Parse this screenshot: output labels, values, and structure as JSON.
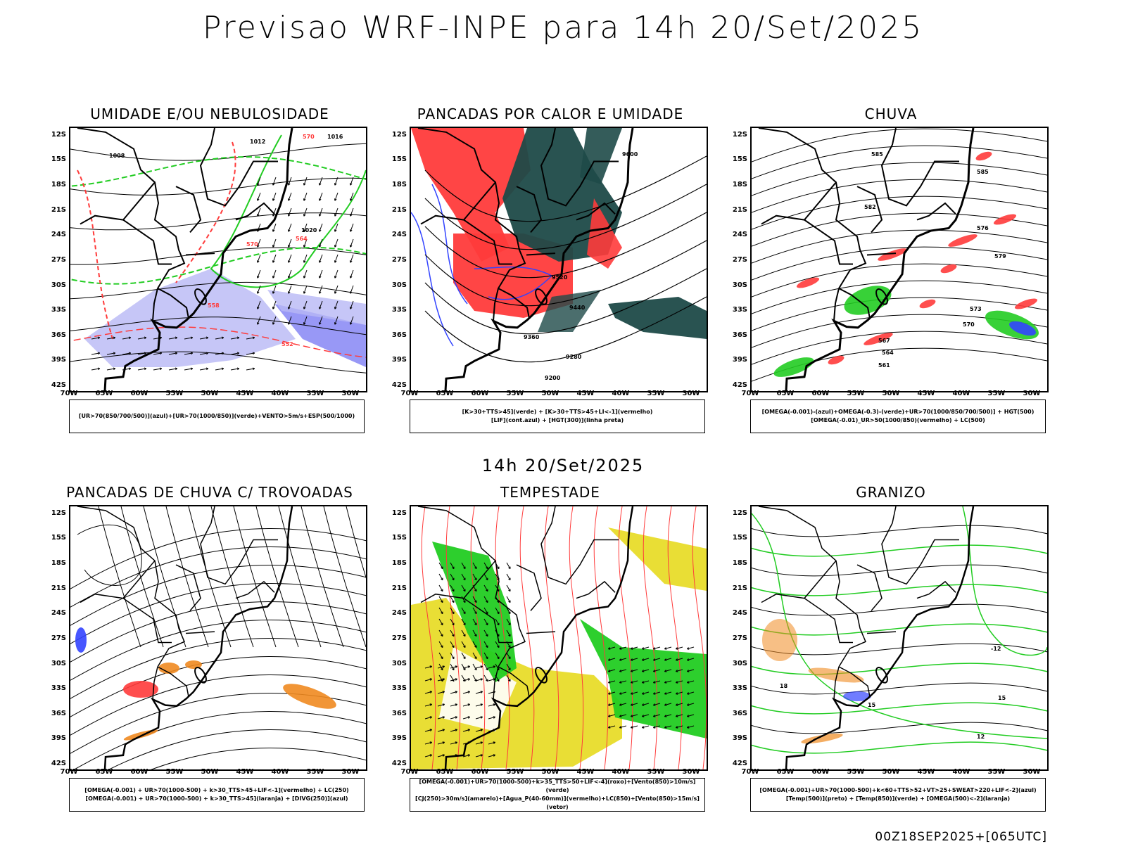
{
  "main_title": "Previsao WRF-INPE  para 14h 20/Set/2025",
  "mid_title": "14h 20/Set/2025",
  "footer": "00Z18SEP2025+[065UTC]",
  "axes": {
    "lat_labels": [
      "12S",
      "15S",
      "18S",
      "21S",
      "24S",
      "27S",
      "30S",
      "33S",
      "36S",
      "39S",
      "42S"
    ],
    "lon_labels": [
      "70W",
      "65W",
      "60W",
      "55W",
      "50W",
      "45W",
      "40W",
      "35W",
      "30W"
    ]
  },
  "colors": {
    "red": "#ff3b3b",
    "green": "#22cc22",
    "blue": "#3344ff",
    "lavender": "#b8b8f5",
    "dark_teal": "#1e4a48",
    "yellow": "#e8dc2a",
    "orange": "#f08a20"
  },
  "panels": [
    {
      "title": "UMIDADE E/OU NEBULOSIDADE",
      "legend": [
        "[UR>70(850/700/500)](azul)+[UR>70(1000/850)](verde)+VENTO>5m/s+ESP(500/1000)"
      ],
      "contour_labels": [
        "1008",
        "1012",
        "1016",
        "1020",
        "570",
        "564",
        "558",
        "552"
      ]
    },
    {
      "title": "PANCADAS POR CALOR E UMIDADE",
      "legend": [
        "[K>30+TTS>45](verde) + [K>30+TTS>45+LI<-1](vermelho)",
        "[LIF](cont.azul) + [HGT(300)](linha preta)"
      ],
      "contour_labels": [
        "9600",
        "9520",
        "9440",
        "9360",
        "9280",
        "9200"
      ]
    },
    {
      "title": "CHUVA",
      "legend": [
        "[OMEGA(-0.001)-(azul)+OMEGA(-0.3)-(verde)+UR>70(1000/850/700/500)] + HGT(500)",
        "[OMEGA(-0.01)_UR>50(1000/850)(vermelho) + LC(500)"
      ],
      "contour_labels": [
        "585",
        "582",
        "579",
        "576",
        "573",
        "570",
        "567",
        "564",
        "561"
      ]
    },
    {
      "title": "PANCADAS DE CHUVA C/ TROVOADAS",
      "legend": [
        "[OMEGA(-0.001) + UR>70(1000-500) + k>30_TTS>45+LIF<-1](vermelho) + LC(250)",
        "[OMEGA(-0.001) + UR>70(1000-500) + k>30_TTS>45](laranja) + [DIVG(250)](azul)"
      ],
      "contour_labels": []
    },
    {
      "title": "TEMPESTADE",
      "legend": [
        "[OMEGA(-0.001)+UR>70(1000-500)+k>35_TTS>50+LIF<-4](roxo)+[Vento(850)>10m/s](verde)",
        "[CJ(250)>30m/s](amarelo)+[Agua_P(40-60mm)](vermelho)+LC(850)+[Vento(850)>15m/s](vetor)"
      ],
      "contour_labels": []
    },
    {
      "title": "GRANIZO",
      "legend": [
        "[OMEGA(-0.001)+UR>70(1000-500)+k<60+TTS>52+VT>25+SWEAT>220+LIF<-2](azul)",
        "[Temp(500)](preto) + [Temp(850)](verde) + [OMEGA(500)<-2](laranja)"
      ],
      "contour_labels": [
        "-12",
        "18",
        "15",
        "12"
      ]
    }
  ]
}
